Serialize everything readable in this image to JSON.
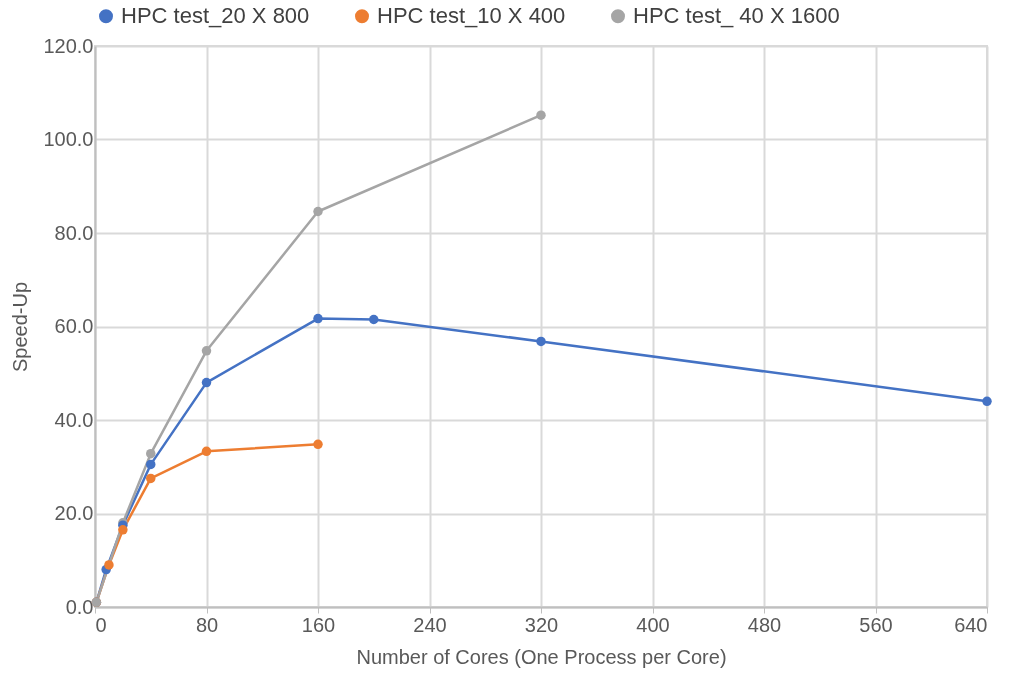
{
  "chart_data": {
    "type": "line",
    "xlabel": "Number of Cores (One Process per Core)",
    "ylabel": "Speed-Up",
    "xlim": [
      0,
      640
    ],
    "xticks": [
      0,
      80,
      160,
      240,
      320,
      400,
      480,
      560,
      640
    ],
    "ylim": [
      0,
      120
    ],
    "yticks": [
      {
        "value": 0,
        "label": "0.0"
      },
      {
        "value": 20,
        "label": "20.0"
      },
      {
        "value": 40,
        "label": "40.0"
      },
      {
        "value": 60,
        "label": "60.0"
      },
      {
        "value": 80,
        "label": "80.0"
      },
      {
        "value": 100,
        "label": "100.0"
      },
      {
        "value": 120,
        "label": "120.0"
      }
    ],
    "grid": true,
    "legend": "top",
    "marker": "circle",
    "line_style": "solid",
    "series": [
      {
        "name": "HPC test_20 X 800",
        "color": "#4472c4",
        "x": [
          1,
          8,
          20,
          40,
          80,
          160,
          200,
          320,
          640
        ],
        "values": [
          1,
          8,
          17.5,
          30.5,
          48,
          61.7,
          61.5,
          56.8,
          44
        ]
      },
      {
        "name": "HPC test_10 X 400",
        "color": "#ed7d31",
        "x": [
          1,
          10,
          20,
          40,
          80,
          160
        ],
        "values": [
          1,
          9,
          16.5,
          27.5,
          33.3,
          34.8
        ]
      },
      {
        "name": "HPC test_ 40 X 1600",
        "color": "#a5a5a5",
        "x": [
          1,
          20,
          40,
          80,
          160,
          320
        ],
        "values": [
          1,
          18,
          32.8,
          54.8,
          84.6,
          105.2
        ]
      }
    ]
  }
}
